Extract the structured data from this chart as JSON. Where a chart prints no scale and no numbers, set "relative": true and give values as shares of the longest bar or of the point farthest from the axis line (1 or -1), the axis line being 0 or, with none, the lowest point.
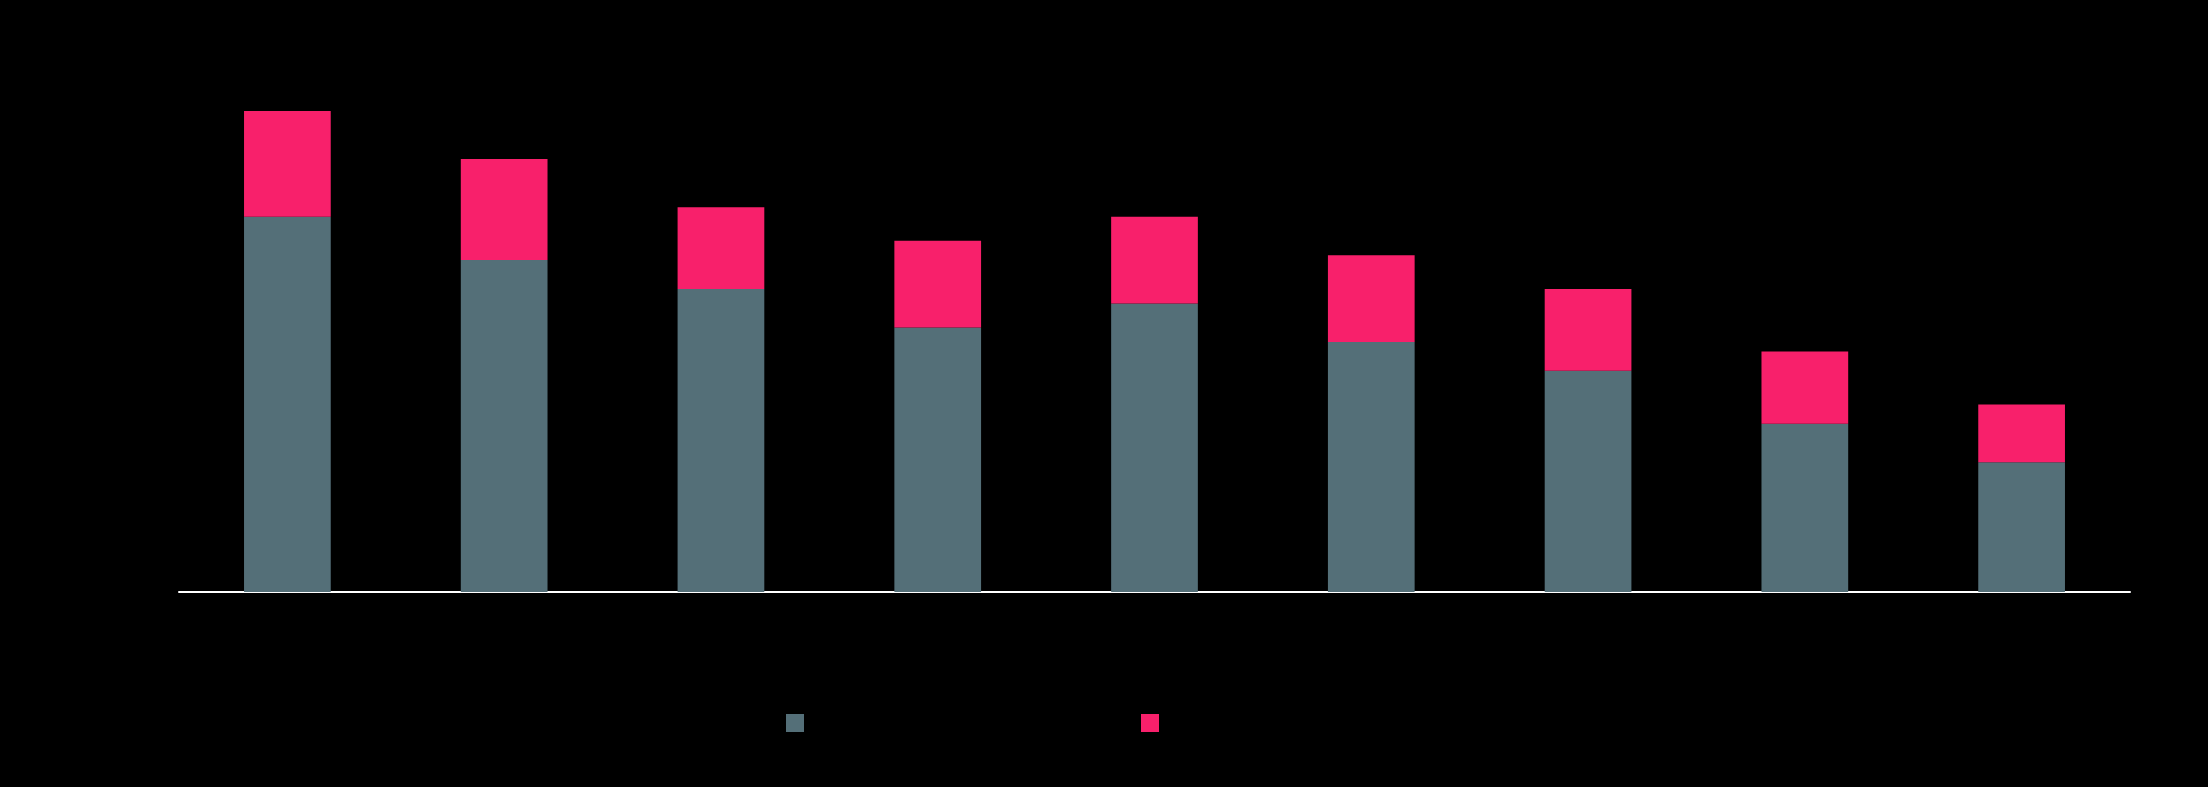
{
  "chart_data": {
    "type": "bar",
    "relative": true,
    "stacked": true,
    "categories": [
      null,
      null,
      null,
      null,
      null,
      null,
      null,
      null,
      null
    ],
    "series": [
      {
        "color": "#546f78",
        "values": [
          0.78,
          0.69,
          0.63,
          0.55,
          0.6,
          0.52,
          0.46,
          0.35,
          0.27
        ]
      },
      {
        "color": "#f8206b",
        "values": [
          0.22,
          0.21,
          0.17,
          0.18,
          0.18,
          0.18,
          0.17,
          0.15,
          0.12
        ]
      }
    ],
    "legend": false
  }
}
